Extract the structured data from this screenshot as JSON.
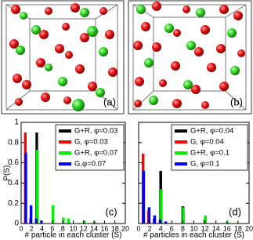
{
  "panels": [
    {
      "label": "(a)"
    },
    {
      "label": "(b)"
    }
  ],
  "chart_data": [
    {
      "type": "bar",
      "annotation": "(c)",
      "y_label": "P(S)",
      "x_label": "# particle in each cluster (S)",
      "x": [
        1,
        2,
        3,
        4,
        5,
        6,
        7,
        8,
        9,
        10,
        11,
        12,
        13,
        14
      ],
      "series": [
        {
          "name": "G+R, φ=0.03",
          "color": "#000000",
          "values": [
            0,
            0,
            0.9,
            0,
            0,
            0,
            0,
            0,
            0,
            0,
            0,
            0,
            0,
            0
          ]
        },
        {
          "name": "G, φ=0.03",
          "color": "#ff0000",
          "values": [
            0.9,
            0.05,
            0,
            0,
            0,
            0,
            0,
            0,
            0,
            0,
            0,
            0,
            0,
            0
          ]
        },
        {
          "name": "G+R, φ=0.07",
          "color": "#00ee00",
          "values": [
            0,
            0,
            0.73,
            0,
            0,
            0.18,
            0,
            0.06,
            0.05,
            0,
            0,
            0.03,
            0,
            0.02
          ]
        },
        {
          "name": "G,φ=0.07",
          "color": "#0000ff",
          "values": [
            0.7,
            0.18,
            0.05,
            0.03,
            0,
            0,
            0,
            0,
            0,
            0,
            0,
            0,
            0,
            0
          ]
        }
      ],
      "xlim": [
        0,
        20
      ],
      "xticks": [
        0,
        2,
        4,
        6,
        8,
        10,
        12,
        14,
        16,
        18,
        20
      ],
      "ylim": [
        0,
        1
      ],
      "yticks": [
        0,
        0.2,
        0.4,
        0.6,
        0.8,
        1
      ],
      "show_ytick_labels": true
    },
    {
      "type": "bar",
      "annotation": "(d)",
      "x_label": "# particles in each cluster (S)",
      "x": [
        1,
        2,
        3,
        4,
        5,
        6,
        7,
        8,
        9,
        10,
        11,
        12,
        13,
        14,
        15,
        16
      ],
      "series": [
        {
          "name": "G+R, φ=0.04",
          "color": "#000000",
          "values": [
            0,
            0,
            0,
            0.52,
            0,
            0,
            0,
            0.17,
            0,
            0,
            0,
            0.04,
            0,
            0,
            0,
            0
          ]
        },
        {
          "name": "G, φ=0.04",
          "color": "#ff0000",
          "values": [
            0.69,
            0.13,
            0.05,
            0,
            0,
            0,
            0,
            0,
            0,
            0,
            0,
            0,
            0,
            0,
            0,
            0
          ]
        },
        {
          "name": "G+R, φ=0.1",
          "color": "#00ee00",
          "values": [
            0,
            0,
            0,
            0.34,
            0,
            0,
            0,
            0.16,
            0,
            0,
            0,
            0.08,
            0,
            0,
            0,
            0.02
          ]
        },
        {
          "name": "G, φ=0.1",
          "color": "#0000ff",
          "values": [
            0.52,
            0.16,
            0.08,
            0.04,
            0.02,
            0,
            0,
            0,
            0,
            0,
            0,
            0,
            0,
            0,
            0,
            0
          ]
        }
      ],
      "xlim": [
        0,
        20
      ],
      "xticks": [
        0,
        2,
        4,
        6,
        8,
        10,
        12,
        14,
        16,
        18,
        20
      ],
      "ylim": [
        0,
        1
      ],
      "yticks": [
        0,
        0.2,
        0.4,
        0.6,
        0.8,
        1
      ],
      "show_ytick_labels": false
    }
  ]
}
